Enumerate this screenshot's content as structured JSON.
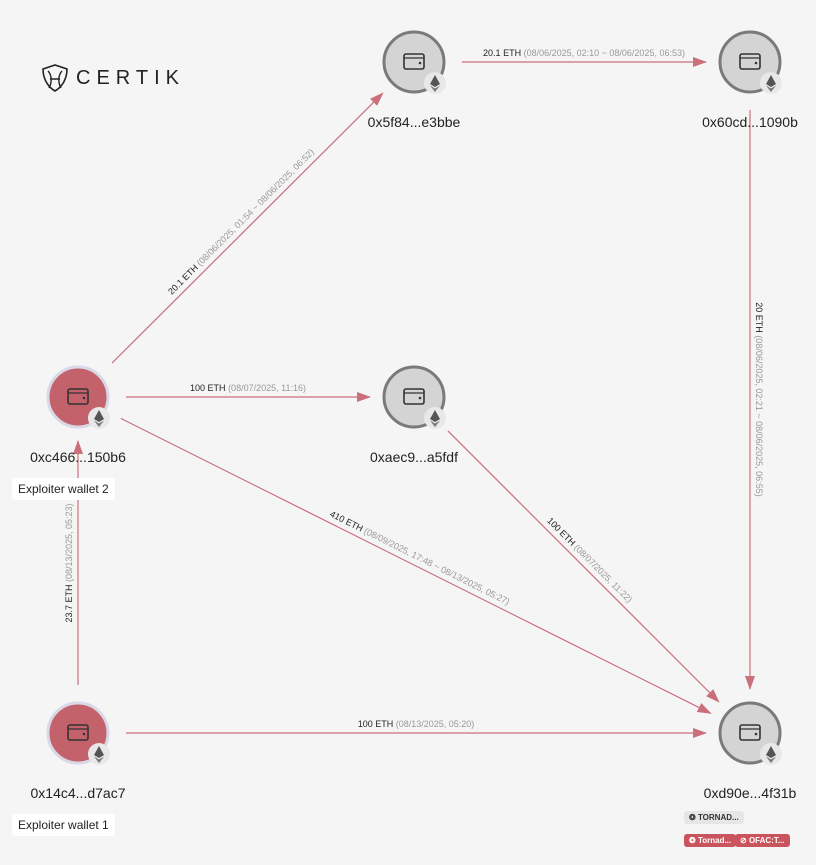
{
  "logo": {
    "text": "CERTIK"
  },
  "colors": {
    "edge": "#c9707a",
    "exploiter_node": "#c4626c",
    "normal_node": "#d4d4d4",
    "node_border": "#7a7a7a"
  },
  "nodes": [
    {
      "id": "A",
      "address": "0x5f84...e3bbe",
      "kind": "normal",
      "icon": "wallet-icon",
      "chain": "ethereum-icon"
    },
    {
      "id": "B",
      "address": "0x60cd...1090b",
      "kind": "normal",
      "icon": "wallet-icon",
      "chain": "ethereum-icon"
    },
    {
      "id": "C",
      "address": "0xc466...150b6",
      "kind": "exploiter",
      "label": "Exploiter wallet 2",
      "icon": "wallet-icon",
      "chain": "ethereum-icon"
    },
    {
      "id": "D",
      "address": "0xaec9...a5fdf",
      "kind": "normal",
      "icon": "wallet-icon",
      "chain": "ethereum-icon"
    },
    {
      "id": "E",
      "address": "0x14c4...d7ac7",
      "kind": "exploiter",
      "label": "Exploiter wallet 1",
      "icon": "wallet-icon",
      "chain": "ethereum-icon"
    },
    {
      "id": "F",
      "address": "0xd90e...4f31b",
      "kind": "normal",
      "icon": "wallet-icon",
      "chain": "ethereum-icon",
      "badges": [
        {
          "text": "TORNAD...",
          "style": "gray"
        },
        {
          "text": "Tornad...",
          "style": "red"
        },
        {
          "text": "OFAC:T...",
          "style": "red"
        }
      ]
    }
  ],
  "edges": [
    {
      "from": "A",
      "to": "B",
      "amount": "20.1 ETH",
      "time": "(08/06/2025, 02:10 ~ 08/06/2025, 06:53)"
    },
    {
      "from": "B",
      "to": "F",
      "amount": "20 ETH",
      "time": "(08/06/2025, 02:21 ~ 08/06/2025, 06:55)"
    },
    {
      "from": "C",
      "to": "A",
      "amount": "20.1 ETH",
      "time": "(08/06/2025, 01:54 ~ 08/06/2025, 06:52)"
    },
    {
      "from": "C",
      "to": "D",
      "amount": "100 ETH",
      "time": "(08/07/2025, 11:16)"
    },
    {
      "from": "C",
      "to": "F",
      "amount": "410 ETH",
      "time": "(08/09/2025, 17:48 ~ 08/13/2025, 05:27)"
    },
    {
      "from": "D",
      "to": "F",
      "amount": "100 ETH",
      "time": "(08/07/2025, 11:22)"
    },
    {
      "from": "E",
      "to": "F",
      "amount": "100 ETH",
      "time": "(08/13/2025, 05:20)"
    },
    {
      "from": "E",
      "to": "C",
      "amount": "23.7 ETH",
      "time": "(08/13/2025, 05:23)"
    }
  ]
}
